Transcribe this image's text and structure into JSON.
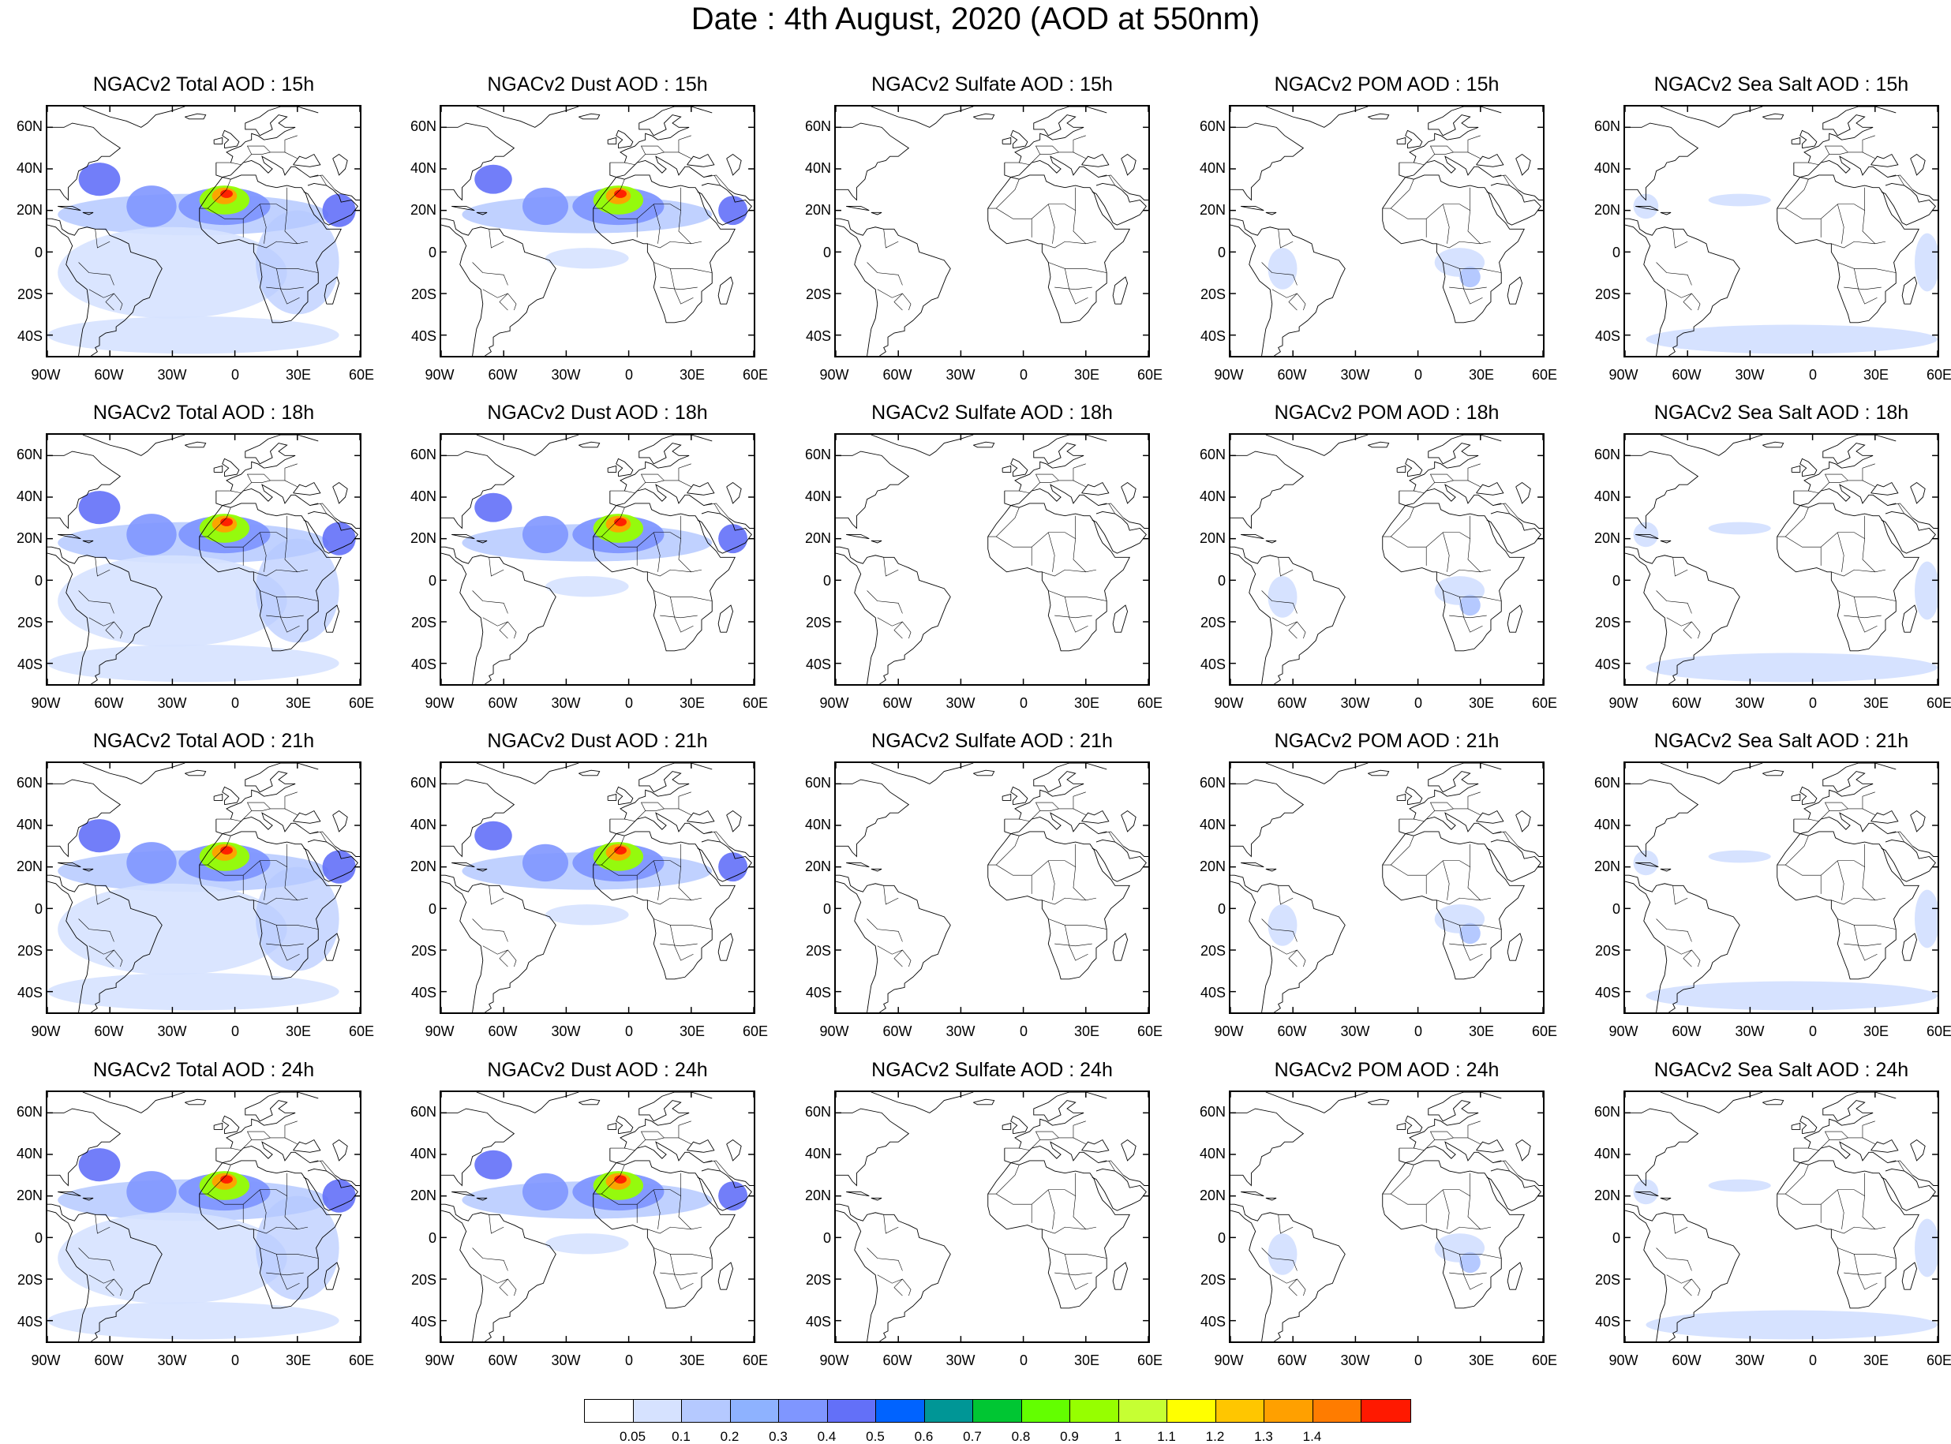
{
  "title": "Date : 4th August, 2020 (AOD at 550nm)",
  "columns": [
    "Total",
    "Dust",
    "Sulfate",
    "POM",
    "Sea Salt"
  ],
  "panel_titles": [
    [
      "NGACv2 Total AOD : 15h",
      "NGACv2 Dust AOD : 15h",
      "NGACv2 Sulfate AOD : 15h",
      "NGACv2 POM AOD : 15h",
      "NGACv2 Sea Salt AOD : 15h"
    ],
    [
      "NGACv2 Total AOD : 18h",
      "NGACv2 Dust AOD : 18h",
      "NGACv2 Sulfate AOD : 18h",
      "NGACv2 POM AOD : 18h",
      "NGACv2 Sea Salt AOD : 18h"
    ],
    [
      "NGACv2 Total AOD : 21h",
      "NGACv2 Dust AOD : 21h",
      "NGACv2 Sulfate AOD : 21h",
      "NGACv2 POM AOD : 21h",
      "NGACv2 Sea Salt AOD : 21h"
    ],
    [
      "NGACv2 Total AOD : 24h",
      "NGACv2 Dust AOD : 24h",
      "NGACv2 Sulfate AOD : 24h",
      "NGACv2 POM AOD : 24h",
      "NGACv2 Sea Salt  AOD : 24h"
    ]
  ],
  "lat_ticks": [
    "60N",
    "40N",
    "20N",
    "0",
    "20S",
    "40S"
  ],
  "lat_values": [
    60,
    40,
    20,
    0,
    -20,
    -40
  ],
  "lon_ticks": [
    "90W",
    "60W",
    "30W",
    "0",
    "30E",
    "60E"
  ],
  "lon_values": [
    -90,
    -60,
    -30,
    0,
    30,
    60
  ],
  "map_extent": {
    "lon": [
      -90,
      60
    ],
    "lat": [
      -50,
      70
    ]
  },
  "colorbar": {
    "colors": [
      "#ffffff",
      "#d6e2ff",
      "#b5c9ff",
      "#8eb2ff",
      "#7f96ff",
      "#6370f8",
      "#0063ff",
      "#009696",
      "#00c633",
      "#63ff00",
      "#96ff00",
      "#c6ff33",
      "#ffff00",
      "#ffc600",
      "#ffa000",
      "#ff7c00",
      "#ff1900"
    ],
    "labels": [
      "0.05",
      "0.1",
      "0.2",
      "0.3",
      "0.4",
      "0.5",
      "0.6",
      "0.7",
      "0.8",
      "0.9",
      "1",
      "1.1",
      "1.2",
      "1.3",
      "1.4"
    ]
  }
}
